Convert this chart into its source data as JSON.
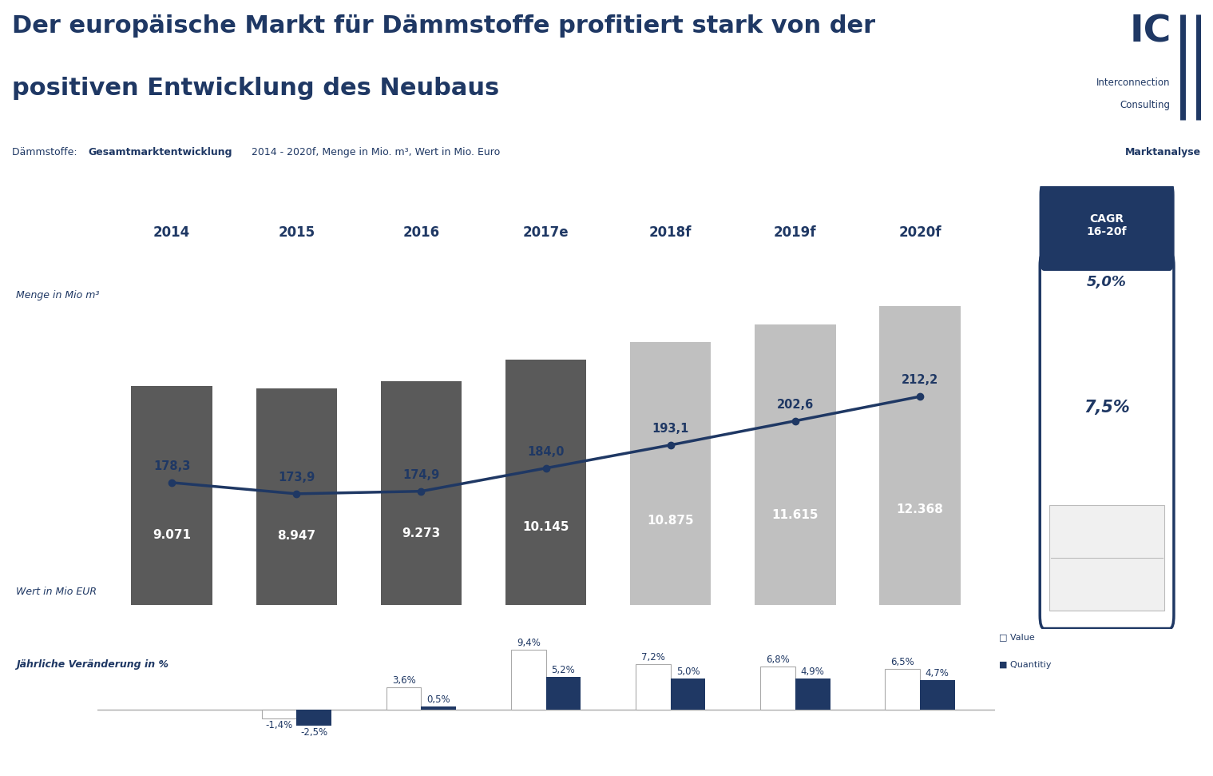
{
  "title_line1": "Der europäische Markt für Dämmstoffe profitiert stark von der",
  "title_line2": "positiven Entwicklung des Neubaus",
  "marktanalyse": "Marktanalyse",
  "years": [
    "2014",
    "2015",
    "2016",
    "2017e",
    "2018f",
    "2019f",
    "2020f"
  ],
  "bar_values": [
    9071,
    8947,
    9273,
    10145,
    10875,
    11615,
    12368
  ],
  "bar_labels": [
    "9.071",
    "8.947",
    "9.273",
    "10.145",
    "10.875",
    "11.615",
    "12.368"
  ],
  "line_values": [
    178.3,
    173.9,
    174.9,
    184.0,
    193.1,
    202.6,
    212.2
  ],
  "line_labels": [
    "178,3",
    "173,9",
    "174,9",
    "184,0",
    "193,1",
    "202,6",
    "212,2"
  ],
  "ylabel_left": "Menge in Mio m³",
  "ylabel_bottom": "Wert in Mio EUR",
  "change_label": "Jährliche Veränderung in %",
  "value_changes": [
    null,
    -1.4,
    3.6,
    9.4,
    7.2,
    6.8,
    6.5
  ],
  "quantity_changes": [
    null,
    -2.5,
    0.5,
    5.2,
    5.0,
    4.9,
    4.7
  ],
  "value_change_labels": [
    "",
    "-1,4%",
    "3,6%",
    "9,4%",
    "7,2%",
    "6,8%",
    "6,5%"
  ],
  "quantity_change_labels": [
    "",
    "-2,5%",
    "0,5%",
    "5,2%",
    "5,0%",
    "4,9%",
    "4,7%"
  ],
  "cagr_title": "CAGR\n16-20f",
  "cagr_quantity": "5,0%",
  "cagr_value": "7,5%",
  "legend_value": "Value",
  "legend_quantity": "Quantitiy",
  "dark_blue": "#1f3864",
  "bg_color": "#ffffff",
  "bar_color_hist": "#5a5a5a",
  "bar_color_fore": "#c0c0c0"
}
